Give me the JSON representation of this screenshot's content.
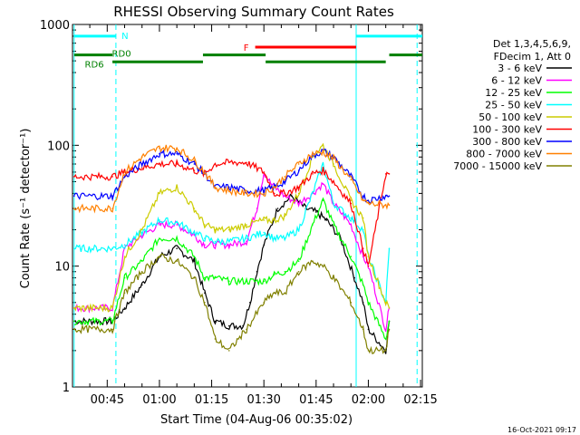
{
  "chart_data": {
    "type": "line",
    "title": "RHESSI Observing Summary Count Rates",
    "xlabel": "Start Time (04-Aug-06 00:35:02)",
    "ylabel": "Count Rate (s⁻¹ detector⁻¹)",
    "ylog": true,
    "ylim": [
      1,
      1000
    ],
    "xlim": [
      35.03,
      135.5
    ],
    "x_unit": "minutes after 00:00 UT, 04-Aug-06",
    "y_ticks": [
      {
        "value": 1,
        "label": "1"
      },
      {
        "value": 10,
        "label": "10"
      },
      {
        "value": 100,
        "label": "100"
      },
      {
        "value": 1000,
        "label": "1000"
      }
    ],
    "x_ticks": [
      {
        "value": 45,
        "label": "00:45"
      },
      {
        "value": 60,
        "label": "01:00"
      },
      {
        "value": 75,
        "label": "01:15"
      },
      {
        "value": 90,
        "label": "01:30"
      },
      {
        "value": 105,
        "label": "01:45"
      },
      {
        "value": 120,
        "label": "02:00"
      },
      {
        "value": 135,
        "label": "02:15"
      }
    ],
    "legend": {
      "position": "right",
      "header": [
        "Det 1,3,4,5,6,9,",
        "FDecim 1, Att 0"
      ]
    },
    "series": [
      {
        "name": "3 - 6 keV",
        "color": "#000000",
        "x": [
          35.5,
          46.5,
          50,
          55,
          60,
          65,
          70,
          73,
          76,
          80,
          84,
          86,
          88,
          90,
          94,
          98,
          102,
          105,
          108,
          112,
          116,
          118.5,
          120,
          125,
          126
        ],
        "y": [
          3.5,
          3.5,
          4.5,
          7,
          12,
          14,
          11,
          6,
          3.5,
          3.2,
          3.2,
          5,
          9,
          15,
          30,
          38,
          30,
          28,
          24,
          17,
          8,
          5,
          3,
          2,
          3.5
        ]
      },
      {
        "name": "6 - 12 keV",
        "color": "#ff00ff",
        "x": [
          35.5,
          46.5,
          50,
          55,
          60,
          65,
          70,
          73,
          76,
          80,
          85,
          88,
          90,
          92,
          96,
          100,
          104,
          107,
          110,
          115,
          118.5,
          120,
          125,
          126
        ],
        "y": [
          4.5,
          4.5,
          14,
          18,
          22,
          22,
          18,
          15,
          15,
          15,
          16,
          30,
          60,
          48,
          38,
          33,
          40,
          48,
          33,
          22,
          12,
          10,
          3,
          4.5
        ]
      },
      {
        "name": "12 - 25 keV",
        "color": "#00ff00",
        "x": [
          35.5,
          46.5,
          50,
          55,
          60,
          65,
          70,
          73,
          76,
          80,
          85,
          90,
          93,
          96,
          100,
          104,
          107,
          110,
          115,
          118.5,
          120,
          125,
          126
        ],
        "y": [
          3.5,
          3.5,
          8,
          11,
          17,
          17,
          12,
          8,
          8,
          7.5,
          7.5,
          7.5,
          8.5,
          9,
          11,
          22,
          35,
          22,
          12,
          7,
          5,
          2.5,
          3.5
        ]
      },
      {
        "name": "25 - 50 keV",
        "color": "#00ffff",
        "x": [
          35.5,
          46.5,
          50,
          55,
          60,
          65,
          70,
          73,
          76,
          80,
          85,
          90,
          93,
          96,
          100,
          104,
          107,
          110,
          115,
          118.5,
          120,
          125,
          126
        ],
        "y": [
          14,
          14,
          15,
          19,
          24,
          23,
          19,
          17,
          16,
          16,
          17,
          19,
          17,
          17,
          20,
          40,
          70,
          33,
          25,
          20,
          12,
          5,
          14
        ]
      },
      {
        "name": "50 - 100 keV",
        "color": "#cccc00",
        "x": [
          35.5,
          46.5,
          50,
          55,
          60,
          65,
          70,
          73,
          76,
          80,
          85,
          90,
          93,
          96,
          100,
          104,
          107,
          110,
          115,
          118.5,
          120,
          125,
          126
        ],
        "y": [
          4.5,
          4.5,
          12,
          20,
          40,
          45,
          30,
          22,
          20,
          20,
          22,
          24,
          24,
          26,
          40,
          80,
          100,
          70,
          35,
          25,
          12,
          5,
          4.5
        ]
      },
      {
        "name": "100 - 300 keV",
        "color": "#ff0000",
        "x": [
          35.5,
          46.5,
          50,
          55,
          60,
          65,
          70,
          73,
          76,
          80,
          85,
          90,
          93,
          96,
          100,
          104,
          107,
          110,
          115,
          118.5,
          120,
          125,
          126
        ],
        "y": [
          55,
          55,
          60,
          65,
          70,
          70,
          62,
          58,
          70,
          72,
          72,
          60,
          40,
          40,
          45,
          58,
          62,
          50,
          33,
          14,
          10,
          58,
          58
        ]
      },
      {
        "name": "300 - 800 keV",
        "color": "#0000ff",
        "x": [
          35.5,
          46.5,
          50,
          55,
          60,
          65,
          70,
          73,
          76,
          80,
          85,
          90,
          93,
          96,
          100,
          104,
          107,
          110,
          115,
          118.5,
          120,
          125,
          126
        ],
        "y": [
          38,
          38,
          55,
          70,
          85,
          85,
          70,
          58,
          45,
          45,
          42,
          42,
          45,
          50,
          62,
          82,
          90,
          80,
          55,
          38,
          35,
          38,
          38
        ]
      },
      {
        "name": "800 - 7000 keV",
        "color": "#ff8000",
        "x": [
          35.5,
          46.5,
          50,
          55,
          60,
          65,
          70,
          73,
          76,
          80,
          85,
          90,
          93,
          96,
          100,
          104,
          107,
          110,
          115,
          118.5,
          120,
          125,
          126
        ],
        "y": [
          30,
          30,
          60,
          80,
          95,
          95,
          75,
          60,
          45,
          42,
          40,
          40,
          45,
          55,
          70,
          85,
          88,
          78,
          52,
          35,
          33,
          32,
          32
        ]
      },
      {
        "name": "7000 - 15000 keV",
        "color": "#808000",
        "x": [
          35.5,
          46.5,
          50,
          55,
          60,
          65,
          70,
          73,
          76,
          80,
          85,
          90,
          93,
          96,
          100,
          104,
          107,
          110,
          115,
          118.5,
          120,
          125,
          126
        ],
        "y": [
          3,
          3,
          6,
          9,
          12,
          11,
          8,
          5,
          2.5,
          2,
          3,
          5,
          6,
          6,
          9,
          11,
          10,
          8,
          5,
          3,
          2,
          2,
          3
        ]
      }
    ],
    "flags": [
      {
        "label": "N",
        "color": "#00ffff",
        "level": 800,
        "segments": [
          [
            35.5,
            47.5
          ],
          [
            116.5,
            135.5
          ]
        ]
      },
      {
        "label": "F",
        "color": "#ff0000",
        "level": 650,
        "segments": [
          [
            87.5,
            116.5
          ]
        ]
      },
      {
        "label": "RD0",
        "color": "#008000",
        "level": 560,
        "segments": [
          [
            35.5,
            46.5
          ],
          [
            72.5,
            90.5
          ],
          [
            126,
            135.5
          ]
        ]
      },
      {
        "label": "RD6",
        "color": "#008000",
        "level": 490,
        "segments": [
          [
            46.5,
            72.5
          ],
          [
            90.5,
            125
          ]
        ]
      }
    ],
    "vlines": [
      {
        "x": 35.5,
        "style": "solid"
      },
      {
        "x": 116.5,
        "style": "solid"
      },
      {
        "x": 47.5,
        "style": "dashed"
      },
      {
        "x": 134,
        "style": "dashed"
      }
    ]
  },
  "timestamp": "16-Oct-2021 09:17"
}
